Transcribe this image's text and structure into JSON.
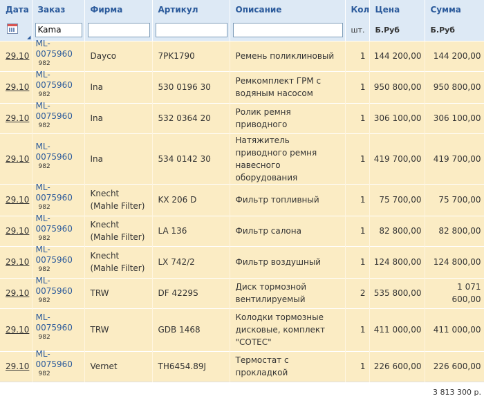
{
  "columns": {
    "date": "Дата",
    "order": "Заказ",
    "brand": "Фирма",
    "article": "Артикул",
    "description": "Описание",
    "qty": "Кол",
    "price": "Цена",
    "sum": "Сумма"
  },
  "units": {
    "qty": "шт.",
    "price": "Б.Руб",
    "sum": "Б.Руб"
  },
  "filters": {
    "order": "Kama",
    "brand": "",
    "article": "",
    "description": ""
  },
  "rows": [
    {
      "date": "29.10",
      "order": "ML-0075960",
      "order_sub": "982",
      "brand": "Dayco",
      "article": "7PK1790",
      "description": "Ремень поликлиновый",
      "qty": "1",
      "price": "144 200,00",
      "sum": "144 200,00"
    },
    {
      "date": "29.10",
      "order": "ML-0075960",
      "order_sub": "982",
      "brand": "Ina",
      "article": "530 0196 30",
      "description": "Ремкомплект ГРМ с водяным насосом",
      "qty": "1",
      "price": "950 800,00",
      "sum": "950 800,00"
    },
    {
      "date": "29.10",
      "order": "ML-0075960",
      "order_sub": "982",
      "brand": "Ina",
      "article": "532 0364 20",
      "description": "Ролик ремня приводного",
      "qty": "1",
      "price": "306 100,00",
      "sum": "306 100,00"
    },
    {
      "date": "29.10",
      "order": "ML-0075960",
      "order_sub": "982",
      "brand": "Ina",
      "article": "534 0142 30",
      "description": "Натяжитель приводного ремня навесного оборудования",
      "qty": "1",
      "price": "419 700,00",
      "sum": "419 700,00"
    },
    {
      "date": "29.10",
      "order": "ML-0075960",
      "order_sub": "982",
      "brand": "Knecht (Mahle Filter)",
      "article": "KX 206 D",
      "description": "Фильтр топливный",
      "qty": "1",
      "price": "75 700,00",
      "sum": "75 700,00"
    },
    {
      "date": "29.10",
      "order": "ML-0075960",
      "order_sub": "982",
      "brand": "Knecht (Mahle Filter)",
      "article": "LA 136",
      "description": "Фильтр салона",
      "qty": "1",
      "price": "82 800,00",
      "sum": "82 800,00"
    },
    {
      "date": "29.10",
      "order": "ML-0075960",
      "order_sub": "982",
      "brand": "Knecht (Mahle Filter)",
      "article": "LX 742/2",
      "description": "Фильтр воздушный",
      "qty": "1",
      "price": "124 800,00",
      "sum": "124 800,00"
    },
    {
      "date": "29.10",
      "order": "ML-0075960",
      "order_sub": "982",
      "brand": "TRW",
      "article": "DF 4229S",
      "description": "Диск тормозной вентилируемый",
      "qty": "2",
      "price": "535 800,00",
      "sum": "1 071 600,00"
    },
    {
      "date": "29.10",
      "order": "ML-0075960",
      "order_sub": "982",
      "brand": "TRW",
      "article": "GDB 1468",
      "description": "Колодки тормозные дисковые, комплект \"COTEC\"",
      "qty": "1",
      "price": "411 000,00",
      "sum": "411 000,00"
    },
    {
      "date": "29.10",
      "order": "ML-0075960",
      "order_sub": "982",
      "brand": "Vernet",
      "article": "TH6454.89J",
      "description": "Термостат с прокладкой",
      "qty": "1",
      "price": "226 600,00",
      "sum": "226 600,00"
    }
  ],
  "total": "3 813 300 р."
}
